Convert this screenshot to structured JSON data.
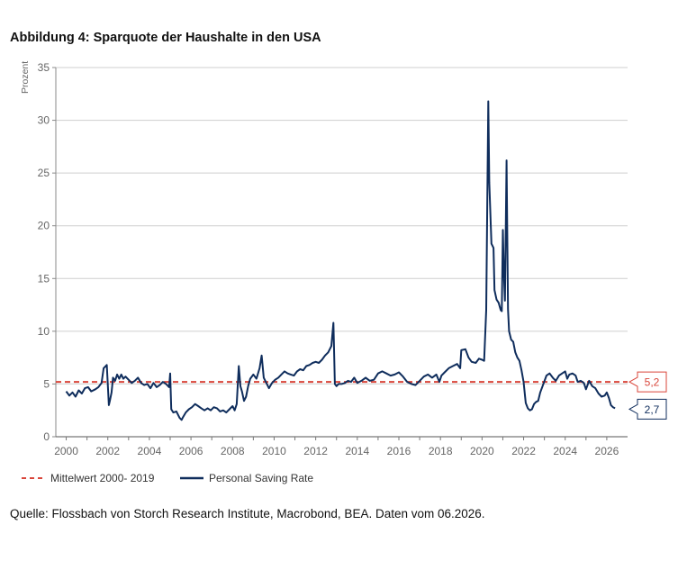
{
  "title": "Abbildung 4: Sparquote der Haushalte in den USA",
  "source": "Quelle: Flossbach von Storch Research Institute, Macrobond, BEA. Daten vom 06.2026.",
  "chart_data": {
    "type": "line",
    "ylabel": "Prozent",
    "ylim": [
      0,
      35
    ],
    "yticks": [
      "0",
      "5",
      "10",
      "15",
      "20",
      "25",
      "30",
      "35"
    ],
    "xlim": [
      1999.5,
      2027.0
    ],
    "xticks": [
      "2000",
      "2002",
      "2004",
      "2006",
      "2008",
      "2010",
      "2012",
      "2014",
      "2016",
      "2018",
      "2020",
      "2022",
      "2024",
      "2026"
    ],
    "grid": true,
    "legend_position": "bottom-left",
    "colors": {
      "saving_rate": "#0f2d5c",
      "mean": "#d9453a",
      "grid": "#cfcfcf"
    },
    "mean_line": {
      "name": "Mittelwert 2000- 2019",
      "value": 5.2,
      "label": "5,2"
    },
    "series": [
      {
        "name": "Personal Saving Rate",
        "last_label": "2,7",
        "x": [
          2000.0,
          2000.15,
          2000.3,
          2000.45,
          2000.6,
          2000.75,
          2000.9,
          2001.05,
          2001.2,
          2001.4,
          2001.55,
          2001.7,
          2001.8,
          2001.95,
          2002.05,
          2002.1,
          2002.18,
          2002.25,
          2002.35,
          2002.45,
          2002.55,
          2002.65,
          2002.75,
          2002.85,
          2003.0,
          2003.15,
          2003.3,
          2003.45,
          2003.6,
          2003.75,
          2003.9,
          2004.05,
          2004.2,
          2004.35,
          2004.5,
          2004.65,
          2004.8,
          2004.95,
          2005.0,
          2005.05,
          2005.15,
          2005.3,
          2005.45,
          2005.55,
          2005.6,
          2005.75,
          2005.9,
          2006.05,
          2006.2,
          2006.35,
          2006.5,
          2006.65,
          2006.8,
          2006.95,
          2007.1,
          2007.25,
          2007.4,
          2007.55,
          2007.7,
          2007.85,
          2008.0,
          2008.1,
          2008.2,
          2008.3,
          2008.38,
          2008.45,
          2008.55,
          2008.65,
          2008.75,
          2008.85,
          2009.0,
          2009.15,
          2009.3,
          2009.4,
          2009.5,
          2009.6,
          2009.75,
          2009.9,
          2010.05,
          2010.2,
          2010.35,
          2010.5,
          2010.65,
          2010.8,
          2010.95,
          2011.1,
          2011.25,
          2011.4,
          2011.55,
          2011.7,
          2011.85,
          2012.0,
          2012.15,
          2012.3,
          2012.45,
          2012.6,
          2012.75,
          2012.85,
          2012.92,
          2013.0,
          2013.1,
          2013.25,
          2013.4,
          2013.55,
          2013.7,
          2013.85,
          2014.0,
          2014.2,
          2014.4,
          2014.6,
          2014.8,
          2015.0,
          2015.2,
          2015.4,
          2015.6,
          2015.8,
          2016.0,
          2016.2,
          2016.4,
          2016.6,
          2016.8,
          2017.0,
          2017.2,
          2017.4,
          2017.6,
          2017.8,
          2017.95,
          2018.05,
          2018.2,
          2018.4,
          2018.6,
          2018.8,
          2018.95,
          2019.0,
          2019.2,
          2019.35,
          2019.5,
          2019.7,
          2019.85,
          2020.0,
          2020.1,
          2020.2,
          2020.3,
          2020.35,
          2020.45,
          2020.55,
          2020.6,
          2020.7,
          2020.8,
          2020.9,
          2020.95,
          2021.0,
          2021.05,
          2021.1,
          2021.18,
          2021.25,
          2021.3,
          2021.4,
          2021.5,
          2021.6,
          2021.7,
          2021.8,
          2021.9,
          2022.0,
          2022.1,
          2022.2,
          2022.3,
          2022.4,
          2022.5,
          2022.6,
          2022.7,
          2022.8,
          2022.95,
          2023.1,
          2023.25,
          2023.4,
          2023.55,
          2023.7,
          2023.85,
          2024.0,
          2024.1,
          2024.2,
          2024.35,
          2024.5,
          2024.6,
          2024.75,
          2024.9,
          2025.0,
          2025.15,
          2025.3,
          2025.45,
          2025.6,
          2025.75,
          2025.9,
          2026.0,
          2026.1,
          2026.2,
          2026.3,
          2026.4
        ],
        "y": [
          4.3,
          3.9,
          4.2,
          3.8,
          4.4,
          4.1,
          4.6,
          4.7,
          4.3,
          4.5,
          4.7,
          5.1,
          6.5,
          6.8,
          3.0,
          3.4,
          4.2,
          5.6,
          5.3,
          5.9,
          5.5,
          5.9,
          5.5,
          5.7,
          5.4,
          5.1,
          5.3,
          5.6,
          5.1,
          4.9,
          5.0,
          4.6,
          5.1,
          4.7,
          4.9,
          5.2,
          5.0,
          4.7,
          6.0,
          2.6,
          2.3,
          2.4,
          1.8,
          1.6,
          1.8,
          2.3,
          2.6,
          2.8,
          3.1,
          2.9,
          2.7,
          2.5,
          2.7,
          2.5,
          2.8,
          2.7,
          2.4,
          2.5,
          2.3,
          2.6,
          2.9,
          2.5,
          3.1,
          6.7,
          4.8,
          4.3,
          3.4,
          3.8,
          4.8,
          5.5,
          5.9,
          5.5,
          6.5,
          7.7,
          5.6,
          5.2,
          4.6,
          5.1,
          5.4,
          5.6,
          5.9,
          6.2,
          6.0,
          5.9,
          5.8,
          6.2,
          6.4,
          6.3,
          6.7,
          6.8,
          7.0,
          7.1,
          7.0,
          7.3,
          7.7,
          8.0,
          8.6,
          10.8,
          5.0,
          4.8,
          5.0,
          5.0,
          5.1,
          5.3,
          5.2,
          5.6,
          5.1,
          5.3,
          5.6,
          5.3,
          5.4,
          6.0,
          6.2,
          6.0,
          5.8,
          5.9,
          6.1,
          5.7,
          5.2,
          5.0,
          4.9,
          5.3,
          5.7,
          5.9,
          5.6,
          5.9,
          5.2,
          5.8,
          6.1,
          6.5,
          6.7,
          6.9,
          6.5,
          8.2,
          8.3,
          7.5,
          7.1,
          7.0,
          7.4,
          7.3,
          7.2,
          12.0,
          31.8,
          24.1,
          18.3,
          17.9,
          13.9,
          13.0,
          12.7,
          12.0,
          11.9,
          19.6,
          15.5,
          12.9,
          26.2,
          12.1,
          10.0,
          9.2,
          9.0,
          8.0,
          7.5,
          7.2,
          6.3,
          5.2,
          3.2,
          2.7,
          2.5,
          2.6,
          3.1,
          3.3,
          3.4,
          4.2,
          5.0,
          5.8,
          6.0,
          5.6,
          5.3,
          5.8,
          6.0,
          6.2,
          5.5,
          5.9,
          6.0,
          5.8,
          5.2,
          5.3,
          5.1,
          4.5,
          5.3,
          4.8,
          4.6,
          4.1,
          3.8,
          3.9,
          4.2,
          3.7,
          3.0,
          2.8,
          2.7
        ]
      }
    ]
  }
}
